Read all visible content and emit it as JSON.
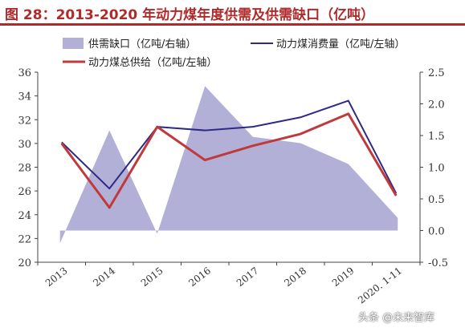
{
  "title": "图 28：2013-2020 年动力煤年度供需及供需缺口（亿吨）",
  "watermark": "头条 @未来智库",
  "chart_data": {
    "type": "line",
    "categories": [
      "2013",
      "2014",
      "2015",
      "2016",
      "2017",
      "2018",
      "2019",
      "2020. 1-11"
    ],
    "ylim": [
      20,
      36
    ],
    "yticks": [
      20,
      22,
      24,
      26,
      28,
      30,
      32,
      34,
      36
    ],
    "y2lim": [
      -0.5,
      2.5
    ],
    "y2ticks": [
      "-0.5",
      "0.0",
      "0.5",
      "1.0",
      "1.5",
      "2.0",
      "2.5"
    ],
    "series": [
      {
        "name": "供需缺口（亿吨/右轴）",
        "type": "area",
        "axis": "right",
        "color": "#b3b0d8",
        "values": [
          -0.2,
          1.58,
          -0.05,
          2.28,
          1.48,
          1.38,
          1.05,
          0.2
        ]
      },
      {
        "name": "动力煤消费量（亿吨/左轴）",
        "type": "line",
        "axis": "left",
        "color": "#2e2a85",
        "values": [
          30.1,
          26.2,
          31.4,
          31.1,
          31.4,
          32.2,
          33.6,
          25.8
        ]
      },
      {
        "name": "动力煤总供给（亿吨/左轴）",
        "type": "line",
        "axis": "left",
        "color": "#c0393b",
        "values": [
          30.0,
          24.6,
          31.4,
          28.6,
          29.8,
          30.8,
          32.5,
          25.6
        ]
      }
    ],
    "legend_position": "top"
  }
}
